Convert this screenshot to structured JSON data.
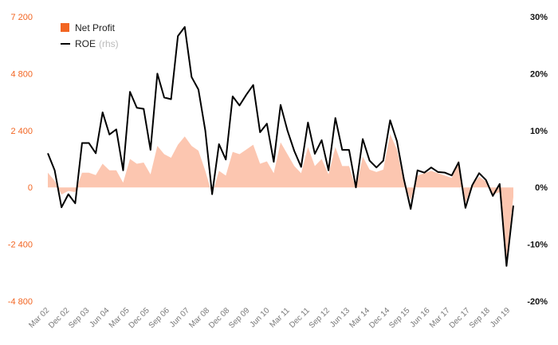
{
  "chart_data": {
    "type": "area",
    "grid": false,
    "legend_placement": "top-left",
    "legend": {
      "net_profit": "Net Profit",
      "roe": "ROE",
      "roe_note": "(rhs)"
    },
    "colors": {
      "net_profit_fill": "#fcc6b0",
      "net_profit_swatch": "#f26522",
      "roe_line": "#000000",
      "left_axis_text": "#f26522",
      "right_axis_text": "#111111",
      "x_axis_text": "#777777"
    },
    "x_tick_labels": [
      "Mar 02",
      "Dec 02",
      "Sep 03",
      "Jun 04",
      "Mar 05",
      "Dec 05",
      "Sep 06",
      "Jun 07",
      "Mar 08",
      "Dec 08",
      "Sep 09",
      "Jun 10",
      "Mar 11",
      "Dec 11",
      "Sep 12",
      "Jun 13",
      "Mar 14",
      "Dec 14",
      "Sep 15",
      "Jun 16",
      "Mar 17",
      "Dec 17",
      "Sep 18",
      "Jun 19"
    ],
    "y_left": {
      "min": -4800,
      "max": 7200,
      "ticks": [
        "7 200",
        "4 800",
        "2 400",
        "0",
        "-2 400",
        "-4 800"
      ]
    },
    "y_right": {
      "min": -20,
      "max": 30,
      "unit": "%",
      "ticks": [
        "30%",
        "20%",
        "10%",
        "0%",
        "-10%",
        "-20%"
      ]
    },
    "series": [
      {
        "name": "Net Profit",
        "axis": "left",
        "kind": "area",
        "values": [
          620,
          280,
          -300,
          -150,
          -200,
          620,
          620,
          520,
          1000,
          720,
          720,
          200,
          1200,
          1000,
          1050,
          550,
          1750,
          1400,
          1250,
          1800,
          2150,
          1750,
          1550,
          700,
          -300,
          700,
          500,
          1500,
          1400,
          1600,
          1800,
          1000,
          1100,
          600,
          1900,
          1400,
          900,
          600,
          1700,
          900,
          1200,
          550,
          1700,
          900,
          900,
          -50,
          1300,
          750,
          650,
          750,
          2250,
          1600,
          200,
          -550,
          500,
          600,
          700,
          600,
          500,
          400,
          1150,
          -650,
          100,
          450,
          250,
          -300,
          -200,
          -3000,
          -400
        ],
        "fill": "#fcc6b0"
      },
      {
        "name": "ROE",
        "axis": "right",
        "kind": "line",
        "values": [
          6,
          3,
          -3.5,
          -1.2,
          -2.8,
          7.8,
          7.8,
          6,
          13.2,
          9.3,
          10.2,
          3,
          16.8,
          14,
          13.8,
          6.6,
          20,
          15.8,
          15.5,
          26.6,
          28.2,
          19.4,
          17.2,
          10,
          -1.2,
          7.6,
          4.9,
          16,
          14.4,
          16.3,
          18,
          9.7,
          11.2,
          4.5,
          14.5,
          10,
          6.4,
          3.6,
          11.4,
          5.9,
          8.3,
          3,
          12.2,
          6.6,
          6.6,
          0,
          8.5,
          4.7,
          3.5,
          4.7,
          11.8,
          8.1,
          1.5,
          -3.8,
          3,
          2.6,
          3.5,
          2.7,
          2.6,
          2.1,
          4.4,
          -3.6,
          0.4,
          2.5,
          1.3,
          -1.5,
          0.6,
          -13.8,
          -3.2
        ],
        "color": "#000000"
      }
    ]
  }
}
